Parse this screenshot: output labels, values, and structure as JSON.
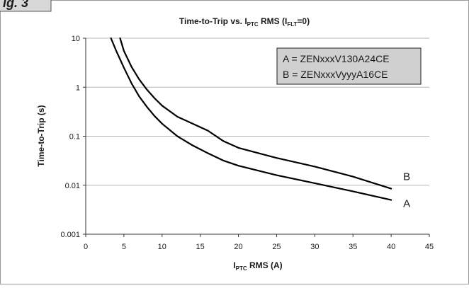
{
  "figure_label": "ig. 3",
  "chart_data": {
    "type": "line",
    "title": "Time-to-Trip vs. I",
    "title_sub1": "PTC",
    "title_mid": " RMS (I",
    "title_sub2": "FLT",
    "title_end": "=0)",
    "xlabel": "I",
    "xlabel_sub": "PTC",
    "xlabel_end": " RMS (A)",
    "ylabel": "Time-to-Trip (s)",
    "x_scale": "linear",
    "y_scale": "log",
    "xlim": [
      0,
      45
    ],
    "ylim": [
      0.001,
      10
    ],
    "x_ticks": [
      0,
      5,
      10,
      15,
      20,
      25,
      30,
      35,
      40,
      45
    ],
    "y_ticks": [
      0.001,
      0.01,
      0.1,
      1,
      10
    ],
    "y_tick_labels": [
      "0.001",
      "0.01",
      "0.1",
      "1",
      "10"
    ],
    "grid": "horizontal",
    "legend_position": "top-right",
    "legend": [
      "A = ZENxxxV130A24CE",
      "B = ZENxxxVyyyA16CE"
    ],
    "series": [
      {
        "name": "A",
        "x": [
          3.3,
          4,
          5,
          6,
          7,
          8,
          9,
          10,
          12,
          14,
          16,
          18,
          20,
          25,
          30,
          35,
          40
        ],
        "y": [
          10,
          5.5,
          2.5,
          1.2,
          0.65,
          0.4,
          0.26,
          0.18,
          0.1,
          0.065,
          0.045,
          0.032,
          0.025,
          0.016,
          0.011,
          0.0075,
          0.005
        ]
      },
      {
        "name": "B",
        "x": [
          4.5,
          5,
          6,
          7,
          8,
          9,
          10,
          12,
          14,
          16,
          18,
          20,
          25,
          30,
          35,
          40
        ],
        "y": [
          10,
          5.5,
          2.6,
          1.45,
          0.9,
          0.6,
          0.42,
          0.25,
          0.18,
          0.13,
          0.08,
          0.058,
          0.036,
          0.024,
          0.015,
          0.0085
        ]
      }
    ]
  }
}
